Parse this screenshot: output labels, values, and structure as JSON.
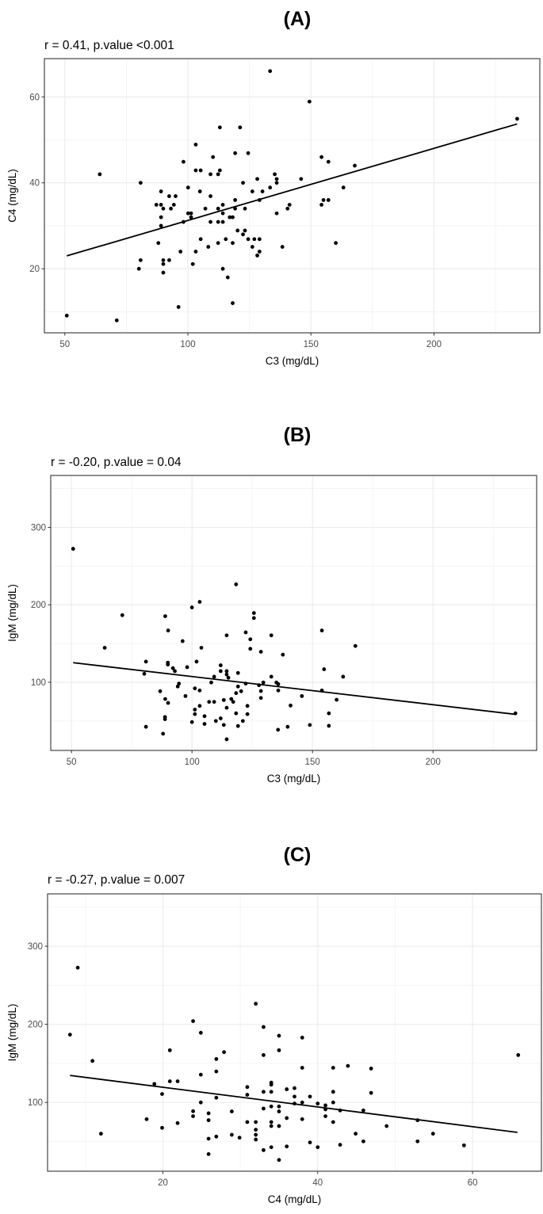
{
  "chart_data": [
    {
      "type": "scatter",
      "panel_label": "(A)",
      "title": "r = 0.41, p.value <0.001",
      "xlabel": "C3 (mg/dL)",
      "ylabel": "C4 (mg/dL)",
      "xlim": [
        41.7,
        243
      ],
      "ylim": [
        5.1,
        68.9
      ],
      "xticks": [
        50,
        100,
        150,
        200
      ],
      "yticks": [
        20,
        40,
        60
      ],
      "xminor": [
        75,
        125,
        175,
        225
      ],
      "yminor": [
        10,
        30,
        50
      ],
      "grid": true,
      "point_color": "#000000",
      "fit_line": [
        [
          50.8,
          23.0
        ],
        [
          233.8,
          53.7
        ]
      ],
      "points": [
        [
          133.4,
          66.0
        ],
        [
          64.2,
          42.0
        ],
        [
          80.8,
          40.0
        ],
        [
          50.8,
          9.1
        ],
        [
          71.1,
          8.0
        ],
        [
          113.0,
          52.9
        ],
        [
          121.2,
          52.9
        ],
        [
          103.2,
          48.9
        ],
        [
          98.2,
          44.9
        ],
        [
          110.2,
          46.0
        ],
        [
          119.2,
          46.9
        ],
        [
          124.5,
          46.9
        ],
        [
          103.2,
          42.9
        ],
        [
          105.2,
          42.9
        ],
        [
          109.2,
          42.0
        ],
        [
          112.3,
          42.0
        ],
        [
          113.0,
          42.9
        ],
        [
          135.3,
          42.0
        ],
        [
          128.2,
          40.9
        ],
        [
          136.1,
          40.9
        ],
        [
          136.1,
          40.0
        ],
        [
          146.0,
          40.9
        ],
        [
          122.4,
          40.0
        ],
        [
          100.1,
          38.9
        ],
        [
          89.1,
          38.0
        ],
        [
          104.9,
          38.0
        ],
        [
          92.4,
          36.9
        ],
        [
          95.0,
          36.9
        ],
        [
          109.2,
          36.9
        ],
        [
          126.2,
          38.0
        ],
        [
          130.3,
          38.0
        ],
        [
          133.4,
          38.9
        ],
        [
          87.2,
          34.9
        ],
        [
          89.1,
          34.9
        ],
        [
          90.0,
          34.0
        ],
        [
          93.1,
          34.0
        ],
        [
          94.3,
          34.9
        ],
        [
          119.2,
          36.0
        ],
        [
          129.1,
          36.0
        ],
        [
          107.1,
          34.0
        ],
        [
          112.3,
          34.0
        ],
        [
          114.2,
          34.9
        ],
        [
          119.2,
          34.0
        ],
        [
          123.2,
          34.0
        ],
        [
          100.1,
          32.9
        ],
        [
          101.3,
          32.9
        ],
        [
          114.2,
          32.9
        ],
        [
          136.1,
          32.9
        ],
        [
          140.5,
          34.0
        ],
        [
          141.3,
          34.9
        ],
        [
          89.1,
          32.0
        ],
        [
          101.3,
          32.0
        ],
        [
          117.0,
          32.0
        ],
        [
          118.2,
          32.0
        ],
        [
          98.2,
          30.9
        ],
        [
          89.1,
          30.0
        ],
        [
          109.2,
          30.9
        ],
        [
          112.3,
          30.9
        ],
        [
          114.2,
          30.9
        ],
        [
          120.2,
          28.9
        ],
        [
          123.2,
          28.9
        ],
        [
          122.4,
          28.0
        ],
        [
          105.2,
          26.9
        ],
        [
          115.4,
          26.9
        ],
        [
          124.5,
          26.9
        ],
        [
          127.0,
          26.9
        ],
        [
          129.1,
          26.9
        ],
        [
          88.0,
          26.0
        ],
        [
          112.3,
          26.0
        ],
        [
          118.2,
          26.0
        ],
        [
          108.3,
          25.1
        ],
        [
          126.2,
          25.1
        ],
        [
          138.4,
          25.1
        ],
        [
          97.0,
          24.0
        ],
        [
          103.2,
          24.0
        ],
        [
          129.1,
          24.0
        ],
        [
          128.2,
          23.1
        ],
        [
          80.8,
          22.0
        ],
        [
          90.0,
          22.0
        ],
        [
          92.4,
          22.0
        ],
        [
          90.0,
          21.1
        ],
        [
          102.0,
          21.1
        ],
        [
          80.1,
          20.0
        ],
        [
          114.2,
          20.0
        ],
        [
          90.0,
          19.1
        ],
        [
          116.2,
          18.0
        ],
        [
          118.2,
          12.0
        ],
        [
          96.2,
          11.1
        ],
        [
          149.4,
          58.9
        ],
        [
          233.8,
          54.9
        ],
        [
          154.3,
          46.0
        ],
        [
          157.1,
          44.9
        ],
        [
          167.8,
          44.0
        ],
        [
          163.2,
          38.9
        ],
        [
          155.1,
          36.0
        ],
        [
          157.1,
          36.0
        ],
        [
          154.3,
          34.9
        ],
        [
          160.1,
          26.0
        ]
      ]
    },
    {
      "type": "scatter",
      "panel_label": "(B)",
      "title": "r = -0.20, p.value = 0.04",
      "xlabel": "C3 (mg/dL)",
      "ylabel": "IgM (mg/dL)",
      "xlim": [
        41.4,
        243
      ],
      "ylim": [
        12,
        367
      ],
      "xticks": [
        50,
        100,
        150,
        200
      ],
      "yticks": [
        100,
        200,
        300
      ],
      "xminor": [
        75,
        125,
        175,
        225
      ],
      "yminor": [
        50,
        150,
        250,
        350
      ],
      "grid": true,
      "point_color": "#000000",
      "fit_line": [
        [
          50.7,
          125.3
        ],
        [
          234.2,
          58.6
        ]
      ],
      "points": [
        [
          50.7,
          272.3
        ],
        [
          118.3,
          226.4
        ],
        [
          103.2,
          203.8
        ],
        [
          100.0,
          196.6
        ],
        [
          71.1,
          186.6
        ],
        [
          88.9,
          185.3
        ],
        [
          90.1,
          166.8
        ],
        [
          96.1,
          153.1
        ],
        [
          103.9,
          144.5
        ],
        [
          114.4,
          160.6
        ],
        [
          122.3,
          164.4
        ],
        [
          124.2,
          155.5
        ],
        [
          124.2,
          143.2
        ],
        [
          63.8,
          144.5
        ],
        [
          80.9,
          126.7
        ],
        [
          90.0,
          125.3
        ],
        [
          90.0,
          122.9
        ],
        [
          92.1,
          118.2
        ],
        [
          92.9,
          114.4
        ],
        [
          98.0,
          119.5
        ],
        [
          101.9,
          126.7
        ],
        [
          111.9,
          121.9
        ],
        [
          111.9,
          114.4
        ],
        [
          114.4,
          114.4
        ],
        [
          114.4,
          110.0
        ],
        [
          115.1,
          105.8
        ],
        [
          119.1,
          112.0
        ],
        [
          109.2,
          107.2
        ],
        [
          108.0,
          99.7
        ],
        [
          80.2,
          110.9
        ],
        [
          122.3,
          98.3
        ],
        [
          119.1,
          94.5
        ],
        [
          120.4,
          88.4
        ],
        [
          118.3,
          86.0
        ],
        [
          94.6,
          98.3
        ],
        [
          94.1,
          94.5
        ],
        [
          86.8,
          88.4
        ],
        [
          101.2,
          92.1
        ],
        [
          103.2,
          89.4
        ],
        [
          97.3,
          82.2
        ],
        [
          88.9,
          78.4
        ],
        [
          90.1,
          73.3
        ],
        [
          107.1,
          74.7
        ],
        [
          109.2,
          74.7
        ],
        [
          113.2,
          77.1
        ],
        [
          116.3,
          78.4
        ],
        [
          117.1,
          74.7
        ],
        [
          114.4,
          67.1
        ],
        [
          103.2,
          69.5
        ],
        [
          101.2,
          64.7
        ],
        [
          101.2,
          58.9
        ],
        [
          123.0,
          69.5
        ],
        [
          118.3,
          59.9
        ],
        [
          123.0,
          58.9
        ],
        [
          105.2,
          56.2
        ],
        [
          88.8,
          55.1
        ],
        [
          88.8,
          52.4
        ],
        [
          111.9,
          53.4
        ],
        [
          109.9,
          50.0
        ],
        [
          113.2,
          44.9
        ],
        [
          105.2,
          46.2
        ],
        [
          100.0,
          48.6
        ],
        [
          121.1,
          50.0
        ],
        [
          119.1,
          43.5
        ],
        [
          80.9,
          42.5
        ],
        [
          88.0,
          33.6
        ],
        [
          114.4,
          26.4
        ],
        [
          125.7,
          189.4
        ],
        [
          125.7,
          182.9
        ],
        [
          132.9,
          160.6
        ],
        [
          128.6,
          139.4
        ],
        [
          137.7,
          135.6
        ],
        [
          153.9,
          166.8
        ],
        [
          167.8,
          146.9
        ],
        [
          154.8,
          116.8
        ],
        [
          162.7,
          107.2
        ],
        [
          132.9,
          107.2
        ],
        [
          135.0,
          99.7
        ],
        [
          135.8,
          97.6
        ],
        [
          129.6,
          99.7
        ],
        [
          127.8,
          96.2
        ],
        [
          128.6,
          88.7
        ],
        [
          135.8,
          89.4
        ],
        [
          128.6,
          79.8
        ],
        [
          153.9,
          89.4
        ],
        [
          145.6,
          82.2
        ],
        [
          160.0,
          77.4
        ],
        [
          140.9,
          70.0
        ],
        [
          156.8,
          59.9
        ],
        [
          156.8,
          43.8
        ],
        [
          148.9,
          44.9
        ],
        [
          139.7,
          42.5
        ],
        [
          135.7,
          38.7
        ],
        [
          234.2,
          59.9
        ]
      ]
    },
    {
      "type": "scatter",
      "panel_label": "(C)",
      "title": "r = -0.27, p.value = 0.007",
      "xlabel": "C4 (mg/dL)",
      "ylabel": "IgM (mg/dL)",
      "xlim": [
        5.1,
        68.9
      ],
      "ylim": [
        12,
        367
      ],
      "xticks": [
        20,
        40,
        60
      ],
      "yticks": [
        100,
        200,
        300
      ],
      "xminor": [
        10,
        30,
        50
      ],
      "yminor": [
        50,
        150,
        250,
        350
      ],
      "grid": true,
      "point_color": "#000000",
      "fit_line": [
        [
          8.0,
          134.6
        ],
        [
          65.8,
          61.7
        ]
      ],
      "points": [
        [
          9.0,
          272.5
        ],
        [
          8.0,
          186.8
        ],
        [
          10.9,
          153.2
        ],
        [
          12.0,
          60.0
        ],
        [
          17.9,
          78.6
        ],
        [
          18.9,
          123.7
        ],
        [
          19.9,
          110.8
        ],
        [
          19.9,
          67.5
        ],
        [
          20.9,
          166.8
        ],
        [
          20.9,
          127.1
        ],
        [
          21.9,
          127.1
        ],
        [
          21.9,
          73.6
        ],
        [
          23.9,
          204.1
        ],
        [
          24.9,
          189.2
        ],
        [
          24.9,
          135.6
        ],
        [
          23.9,
          88.8
        ],
        [
          23.9,
          82.4
        ],
        [
          24.9,
          100
        ],
        [
          25.9,
          86.1
        ],
        [
          25.9,
          77.3
        ],
        [
          25.9,
          53.6
        ],
        [
          25.9,
          33.9
        ],
        [
          26.9,
          155.6
        ],
        [
          26.9,
          139.7
        ],
        [
          26.9,
          106.1
        ],
        [
          26.9,
          56.3
        ],
        [
          27.9,
          164.4
        ],
        [
          28.9,
          88.5
        ],
        [
          28.9,
          58.6
        ],
        [
          29.9,
          54.9
        ],
        [
          30.9,
          119.7
        ],
        [
          30.9,
          109.8
        ],
        [
          30.9,
          74.9
        ],
        [
          32.0,
          226.4
        ],
        [
          33.0,
          196.6
        ],
        [
          33.0,
          160.7
        ],
        [
          35.0,
          185.4
        ],
        [
          35.0,
          166.8
        ],
        [
          38.0,
          183.0
        ],
        [
          38.0,
          144.4
        ],
        [
          42.0,
          144.4
        ],
        [
          43.9,
          146.8
        ],
        [
          46.9,
          143.4
        ],
        [
          65.9,
          160.7
        ],
        [
          34.0,
          125.4
        ],
        [
          34.0,
          122.7
        ],
        [
          34.0,
          113.6
        ],
        [
          33.0,
          113.6
        ],
        [
          36.0,
          116.9
        ],
        [
          37.0,
          118.3
        ],
        [
          37.0,
          107.5
        ],
        [
          37.0,
          98.6
        ],
        [
          39.0,
          107.5
        ],
        [
          38.0,
          100
        ],
        [
          40.0,
          98.6
        ],
        [
          41.0,
          96.3
        ],
        [
          41.0,
          91.2
        ],
        [
          41.0,
          82.4
        ],
        [
          42.0,
          113.6
        ],
        [
          42.0,
          100
        ],
        [
          42.0,
          74.9
        ],
        [
          42.9,
          89.8
        ],
        [
          45.9,
          89.8
        ],
        [
          46.9,
          112.2
        ],
        [
          33.0,
          92.2
        ],
        [
          34.0,
          94.9
        ],
        [
          35.0,
          94.9
        ],
        [
          35.0,
          88.5
        ],
        [
          36.0,
          80.0
        ],
        [
          38.0,
          78.6
        ],
        [
          32.0,
          74.9
        ],
        [
          34.0,
          74.9
        ],
        [
          34.0,
          69.8
        ],
        [
          35.0,
          69.8
        ],
        [
          32.0,
          65.1
        ],
        [
          32.0,
          58.6
        ],
        [
          32.0,
          52.5
        ],
        [
          44.9,
          60.0
        ],
        [
          48.9,
          69.8
        ],
        [
          52.9,
          77.3
        ],
        [
          54.9,
          60.0
        ],
        [
          45.9,
          50.2
        ],
        [
          52.9,
          50.2
        ],
        [
          58.9,
          45.1
        ],
        [
          39.0,
          48.8
        ],
        [
          40.0,
          42.7
        ],
        [
          42.9,
          45.8
        ],
        [
          36.0,
          43.7
        ],
        [
          34.0,
          42.7
        ],
        [
          33.0,
          39.0
        ],
        [
          35.0,
          26.4
        ]
      ]
    }
  ]
}
